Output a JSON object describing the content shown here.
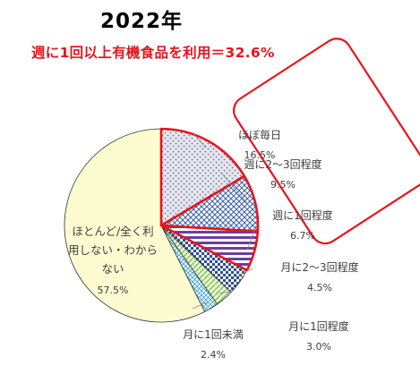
{
  "header": {
    "year": "2022年",
    "subtitle": "週に1回以上有機食品を利用＝32.6%"
  },
  "chart_data": {
    "type": "pie",
    "title": "2022年",
    "subtitle": "週に1回以上有機食品を利用＝32.6%",
    "slices": [
      {
        "label": "ほぼ毎日",
        "value": 16.5,
        "value_label": "16.5%",
        "pattern": "dots",
        "color": "#c8ccd8",
        "highlighted": true
      },
      {
        "label": "週に2～3回程度",
        "value": 9.5,
        "value_label": "9.5%",
        "pattern": "crosshatch",
        "color": "#3b5fa8",
        "highlighted": true
      },
      {
        "label": "週に1回程度",
        "value": 6.7,
        "value_label": "6.7%",
        "pattern": "stripes",
        "color": "#6b3fa0",
        "highlighted": true
      },
      {
        "label": "月に2～3回程度",
        "value": 4.5,
        "value_label": "4.5%",
        "pattern": "checker",
        "color": "#2e4f94",
        "highlighted": false
      },
      {
        "label": "月に1回程度",
        "value": 3.0,
        "value_label": "3.0%",
        "pattern": "diamond",
        "color": "#8ec94d",
        "highlighted": false
      },
      {
        "label": "月に1回未満",
        "value": 2.4,
        "value_label": "2.4%",
        "pattern": "grid",
        "color": "#3aa0d8",
        "highlighted": false
      },
      {
        "label": "ほとんど/全く利用しない・わからない",
        "value": 57.5,
        "value_label": "57.5%",
        "pattern": "solid",
        "color": "#fdfbd0",
        "highlighted": false
      }
    ],
    "start": "top",
    "direction": "clockwise",
    "highlight_color": "#e8141c"
  }
}
